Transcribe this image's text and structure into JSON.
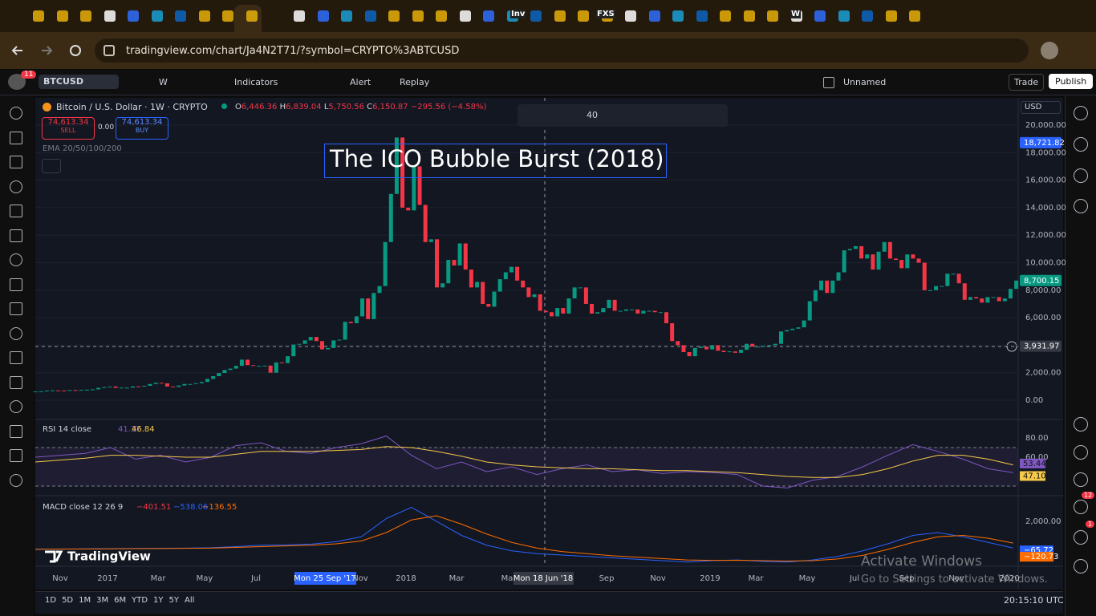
{
  "browser": {
    "address": "tradingview.com/chart/Ja4N2T71/?symbol=CRYPTO%3ABTCUSD",
    "tab_labels": [
      "Inv",
      "FXS",
      "W"
    ]
  },
  "toolbar": {
    "symbol": "BTCUSD",
    "interval": "W",
    "indicators": "Indicators",
    "alert": "Alert",
    "replay": "Replay",
    "layout": "Unnamed",
    "trade": "Trade",
    "publish": "Publish",
    "notifications": "11"
  },
  "legend": {
    "title": "Bitcoin / U.S. Dollar · 1W · CRYPTO",
    "open_key": "O",
    "open": "6,446.36",
    "high_key": "H",
    "high": "6,839.04",
    "low_key": "L",
    "low": "5,750.56",
    "close_key": "C",
    "close": "6,150.87",
    "change": "−295.56 (−4.58%)",
    "sell_price": "74,613.34",
    "sell": "SELL",
    "spread": "0.00",
    "buy_price": "74,613.34",
    "buy": "BUY",
    "ema": "EMA 20/50/100/200"
  },
  "drawing_toolbar": {
    "font_size": "40"
  },
  "annotation": "The ICO Bubble Burst (2018)",
  "currency": "USD",
  "chart_data": {
    "type": "candlestick",
    "closes": [
      640,
      650,
      700,
      720,
      710,
      700,
      740,
      730,
      760,
      770,
      790,
      900,
      960,
      1000,
      900,
      920,
      920,
      1010,
      1000,
      1050,
      1180,
      1270,
      1230,
      1000,
      970,
      1070,
      1180,
      1180,
      1240,
      1330,
      1550,
      1750,
      1980,
      2200,
      2300,
      2500,
      2950,
      2550,
      2500,
      2500,
      2520,
      2000,
      2750,
      2700,
      3200,
      4050,
      4100,
      4350,
      4600,
      4300,
      3700,
      3800,
      4350,
      4400,
      5700,
      5600,
      6100,
      7400,
      5900,
      7800,
      8300,
      11500,
      15000,
      19100,
      14000,
      13800,
      17000,
      14200,
      11500,
      11700,
      8200,
      8500,
      10200,
      9800,
      11400,
      9500,
      8200,
      8600,
      7000,
      6800,
      7900,
      8800,
      9300,
      9700,
      8700,
      8200,
      7500,
      7700,
      6500,
      6400,
      6100,
      6700,
      6300,
      7400,
      8200,
      8200,
      7000,
      6300,
      6400,
      6700,
      7300,
      6500,
      6500,
      6600,
      6600,
      6300,
      6500,
      6500,
      6400,
      6400,
      5600,
      4300,
      4000,
      3500,
      3200,
      3800,
      3900,
      3700,
      4000,
      3600,
      3500,
      3550,
      3450,
      3670,
      4100,
      3900,
      3900,
      3950,
      4000,
      4100,
      5000,
      5100,
      5200,
      5300,
      5800,
      7200,
      8000,
      8700,
      7800,
      8700,
      9300,
      10900,
      11000,
      11200,
      10300,
      10600,
      9500,
      10800,
      11500,
      10300,
      10200,
      9600,
      10600,
      10300,
      10000,
      8000,
      8000,
      8300,
      8300,
      9200,
      9200,
      8500,
      7300,
      7500,
      7400,
      7100,
      7500,
      7500,
      7200,
      7400,
      8100,
      8700
    ],
    "ylim": [
      -1224,
      21983
    ],
    "yticks": [
      {
        "value": 0,
        "label": "0.00"
      },
      {
        "value": 2000,
        "label": "2,000.00"
      },
      {
        "value": 4000,
        "label": "4,000.00"
      },
      {
        "value": 6000,
        "label": "6,000.00"
      },
      {
        "value": 8000,
        "label": "8,000.00"
      },
      {
        "value": 10000,
        "label": "10,000.00"
      },
      {
        "value": 12000,
        "label": "12,000.00"
      },
      {
        "value": 14000,
        "label": "14,000.00"
      },
      {
        "value": 16000,
        "label": "16,000.00"
      },
      {
        "value": 18000,
        "label": "18,000.00"
      },
      {
        "value": 20000,
        "label": "20,000.00"
      }
    ],
    "price_labels": [
      {
        "value": 18721.82,
        "label": "18,721.82",
        "color": "#2962ff"
      },
      {
        "value": 8700.15,
        "label": "8,700.15",
        "color": "#089981"
      },
      {
        "value": 3931.97,
        "label": "3,931.97",
        "color": "#363a45"
      }
    ],
    "up_color": "#089981",
    "down_color": "#f23645"
  },
  "rsi": {
    "label": "RSI 14 close",
    "value": "41.37",
    "ma_value": "46.84",
    "ylim": [
      22.5,
      97.5
    ],
    "yticks": [
      {
        "value": 80,
        "label": "80.00"
      },
      {
        "value": 60,
        "label": "60.00"
      }
    ],
    "bands": [
      70,
      30
    ],
    "values": [
      60,
      62,
      64,
      70,
      58,
      62,
      55,
      60,
      72,
      75,
      66,
      64,
      70,
      74,
      82,
      62,
      48,
      55,
      45,
      50,
      42,
      48,
      52,
      45,
      47,
      43,
      45,
      44,
      42,
      30,
      28,
      36,
      40,
      50,
      62,
      73,
      66,
      58,
      48,
      44
    ],
    "ma": [
      55,
      57,
      59,
      62,
      62,
      61,
      60,
      60,
      63,
      66,
      66,
      66,
      67,
      68,
      71,
      70,
      66,
      61,
      55,
      52,
      50,
      49,
      48,
      48,
      47,
      46,
      46,
      45,
      44,
      42,
      40,
      39,
      39,
      42,
      48,
      56,
      62,
      62,
      58,
      52
    ],
    "last_labels": [
      {
        "value": 53.44,
        "label": "53.44",
        "color": "#7e57c2"
      },
      {
        "value": 47.1,
        "label": "47.10",
        "color": "#f7c948"
      }
    ]
  },
  "macd": {
    "label": "MACD close 12 26 9",
    "hist_value": "−401.51",
    "macd_value": "−538.06",
    "signal_value": "−136.55",
    "ylim": [
      -1143,
      3714
    ],
    "yticks": [
      {
        "value": 2000,
        "label": "2,000.00"
      }
    ],
    "macd": [
      20,
      30,
      40,
      60,
      70,
      80,
      90,
      120,
      200,
      300,
      320,
      380,
      550,
      900,
      2200,
      3000,
      2000,
      1000,
      300,
      -100,
      -300,
      -400,
      -500,
      -600,
      -700,
      -800,
      -900,
      -800,
      -750,
      -850,
      -900,
      -750,
      -500,
      -100,
      400,
      1000,
      1200,
      900,
      500,
      100
    ],
    "signal": [
      10,
      20,
      30,
      40,
      55,
      65,
      75,
      90,
      140,
      200,
      250,
      300,
      400,
      600,
      1200,
      2100,
      2400,
      1800,
      1100,
      500,
      100,
      -150,
      -300,
      -450,
      -550,
      -650,
      -750,
      -780,
      -770,
      -800,
      -830,
      -800,
      -680,
      -420,
      0,
      500,
      900,
      1000,
      800,
      450
    ],
    "last_labels": [
      {
        "value": -65.72,
        "label": "−65.72",
        "color": "#2962ff"
      },
      {
        "value": -120.73,
        "label": "−120.73",
        "color": "#ff6d00"
      }
    ]
  },
  "time_axis": {
    "labels": [
      "Nov",
      "2017",
      "Mar",
      "May",
      "Jul",
      "Nov",
      "2018",
      "Mar",
      "Ma",
      "Sep",
      "Nov",
      "2019",
      "Mar",
      "May",
      "Jul",
      "Sep",
      "Nov",
      "2020"
    ],
    "selected": "Mon 25 Sep '17",
    "crosshair": "Mon 18 Jun '18"
  },
  "bottom_bar": {
    "ranges": [
      "1D",
      "5D",
      "1M",
      "3M",
      "6M",
      "YTD",
      "1Y",
      "5Y",
      "All"
    ],
    "clock": "20:15:10 UTC"
  },
  "watermark": "TradingView",
  "activation": {
    "title": "Activate Windows",
    "body": "Go to Settings to activate Windows."
  },
  "sidebar_badges": [
    "12",
    "1"
  ]
}
